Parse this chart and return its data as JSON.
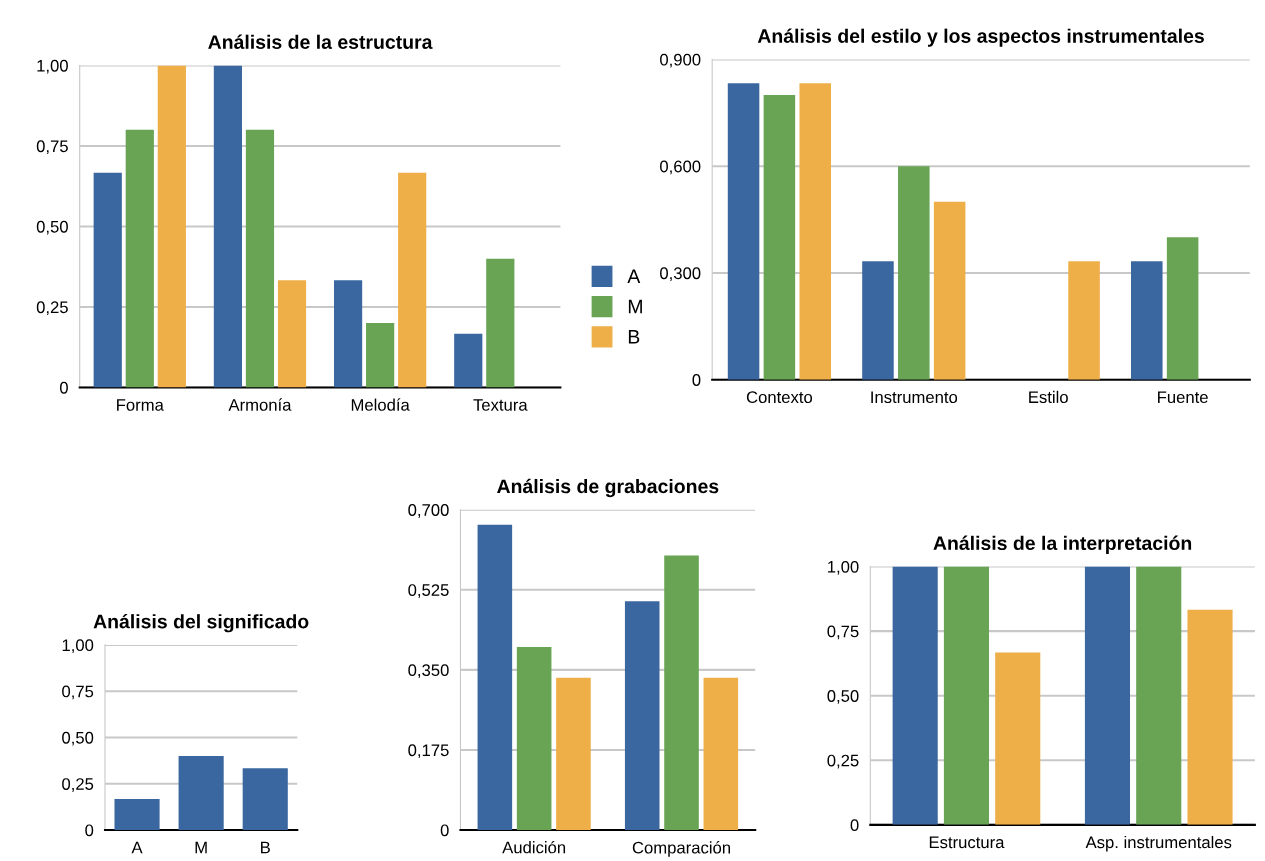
{
  "chart_data": [
    {
      "type": "bar",
      "title": "Análisis de la estructura",
      "categories": [
        "Forma",
        "Armonía",
        "Melodía",
        "Textura"
      ],
      "series": [
        {
          "name": "A",
          "color": "#3a67a0",
          "values": [
            0.667,
            1.0,
            0.333,
            0.167
          ]
        },
        {
          "name": "M",
          "color": "#68a453",
          "values": [
            0.8,
            0.8,
            0.2,
            0.4
          ]
        },
        {
          "name": "B",
          "color": "#eeae48",
          "values": [
            1.0,
            0.333,
            0.667,
            0
          ]
        }
      ],
      "ylim": [
        0,
        1
      ],
      "yticks": [
        0,
        {
          "value": 0.25,
          "label": "0,25"
        },
        {
          "value": 0.5,
          "label": "0,50"
        },
        {
          "value": 0.75,
          "label": "0,75"
        },
        {
          "value": 1,
          "label": "1,00"
        }
      ],
      "grid": "y",
      "legend": "right"
    },
    {
      "type": "bar",
      "title": "Análisis del estilo y los aspectos instrumentales",
      "categories": [
        "Contexto",
        "Instrumento",
        "Estilo",
        "Fuente"
      ],
      "series": [
        {
          "color": "#3a67a0",
          "values": [
            0.833,
            0.333,
            0,
            0.333
          ]
        },
        {
          "color": "#68a453",
          "values": [
            0.8,
            0.6,
            0,
            0.4
          ]
        },
        {
          "color": "#eeae48",
          "values": [
            0.833,
            0.5,
            0.333,
            0
          ]
        }
      ],
      "ylim": [
        0,
        0.9
      ],
      "yticks": [
        0,
        {
          "value": 0.3,
          "label": "0,300"
        },
        {
          "value": 0.6,
          "label": "0,600"
        },
        {
          "value": 0.9,
          "label": "0,900"
        }
      ],
      "grid": "y"
    },
    {
      "type": "bar",
      "title": "Análisis del significado",
      "categories": [
        "A",
        "M",
        "B"
      ],
      "series": [
        {
          "color": "#3a67a0",
          "values": [
            0.167,
            0.4,
            0.333
          ]
        }
      ],
      "ylim": [
        0,
        1
      ],
      "yticks": [
        0,
        {
          "value": 0.25,
          "label": "0,25"
        },
        {
          "value": 0.5,
          "label": "0,50"
        },
        {
          "value": 0.75,
          "label": "0,75"
        },
        {
          "value": 1,
          "label": "1,00"
        }
      ],
      "grid": "y"
    },
    {
      "type": "bar",
      "title": "Análisis de grabaciones",
      "categories": [
        "Audición",
        "Comparación"
      ],
      "series": [
        {
          "color": "#3a67a0",
          "values": [
            0.667,
            0.5
          ]
        },
        {
          "color": "#68a453",
          "values": [
            0.4,
            0.6
          ]
        },
        {
          "color": "#eeae48",
          "values": [
            0.333,
            0.333
          ]
        }
      ],
      "ylim": [
        0,
        0.7
      ],
      "yticks": [
        0,
        {
          "value": 0.175,
          "label": "0,175"
        },
        {
          "value": 0.35,
          "label": "0,350"
        },
        {
          "value": 0.525,
          "label": "0,525"
        },
        {
          "value": 0.7,
          "label": "0,700"
        }
      ],
      "grid": "y"
    },
    {
      "type": "bar",
      "title": "Análisis de la interpretación",
      "categories": [
        "Estructura",
        "Asp. instrumentales"
      ],
      "series": [
        {
          "color": "#3a67a0",
          "values": [
            1.0,
            1.0
          ]
        },
        {
          "color": "#68a453",
          "values": [
            1.0,
            1.0
          ]
        },
        {
          "color": "#eeae48",
          "values": [
            0.667,
            0.833
          ]
        }
      ],
      "ylim": [
        0,
        1
      ],
      "yticks": [
        0,
        {
          "value": 0.25,
          "label": "0,25"
        },
        {
          "value": 0.5,
          "label": "0,50"
        },
        {
          "value": 0.75,
          "label": "0,75"
        },
        {
          "value": 1,
          "label": "1,00"
        }
      ],
      "grid": "y"
    }
  ]
}
